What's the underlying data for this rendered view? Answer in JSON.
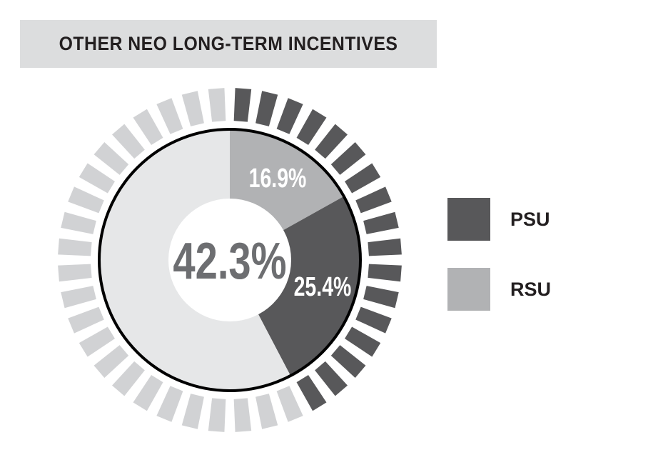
{
  "chart_data": {
    "type": "pie",
    "title": "OTHER NEO LONG-TERM INCENTIVES",
    "center_label": "42.3%",
    "slices": [
      {
        "name": "RSU",
        "value": 16.9,
        "label": "16.9%",
        "color": "#b1b2b4"
      },
      {
        "name": "PSU",
        "value": 25.4,
        "label": "25.4%",
        "color": "#58585a"
      },
      {
        "name": "",
        "value": 57.7,
        "label": "",
        "color": "#e6e7e8"
      }
    ],
    "tick_ring": {
      "total_ticks": 40,
      "highlighted_fraction": 0.423,
      "highlight_color": "#58585a",
      "base_color": "#d1d2d4"
    },
    "legend": {
      "placement": "right",
      "entries": [
        {
          "name": "PSU",
          "color": "#58585a"
        },
        {
          "name": "RSU",
          "color": "#b1b2b4"
        }
      ]
    }
  }
}
